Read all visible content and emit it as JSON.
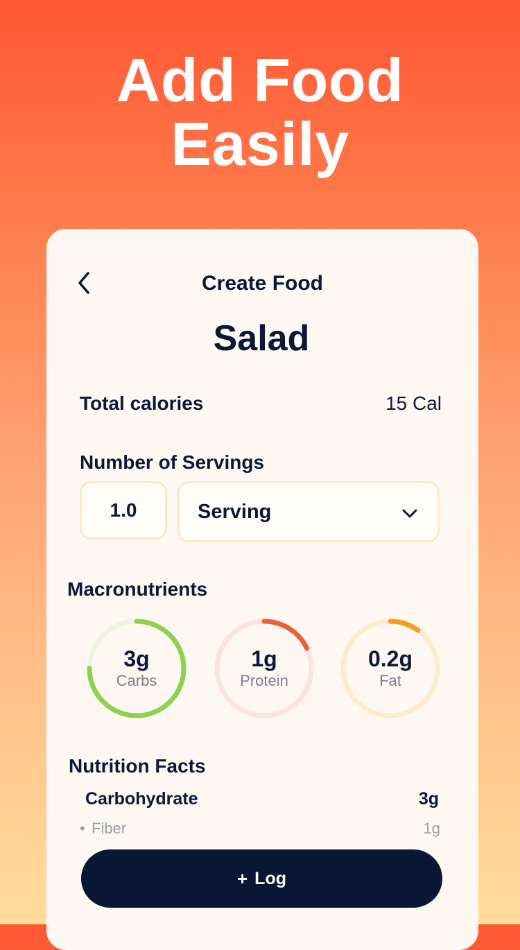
{
  "hero": {
    "line1": "Add Food",
    "line2": "Easily"
  },
  "header": {
    "back_icon": "chevron-left-icon",
    "title": "Create Food"
  },
  "food": {
    "name": "Salad"
  },
  "calories": {
    "label": "Total calories",
    "value": "15 Cal"
  },
  "servings": {
    "label": "Number of Servings",
    "quantity": "1.0",
    "unit": "Serving",
    "unit_icon": "chevron-down-icon"
  },
  "macros": {
    "title": "Macronutrients",
    "items": [
      {
        "value": "3g",
        "label": "Carbs",
        "fraction": 0.75,
        "color": "#8fd14f",
        "track": "#edf4e1"
      },
      {
        "value": "1g",
        "label": "Protein",
        "fraction": 0.18,
        "color": "#f25c3b",
        "track": "#fce3dd"
      },
      {
        "value": "0.2g",
        "label": "Fat",
        "fraction": 0.1,
        "color": "#f79a1f",
        "track": "#fdebd0"
      }
    ]
  },
  "nutrition": {
    "title": "Nutrition Facts",
    "main_label": "Carbohydrate",
    "main_value": "3g",
    "sub_bullet": "•",
    "sub_label": "Fiber",
    "sub_value": "1g"
  },
  "log_button": {
    "icon": "+",
    "label": "Log"
  },
  "colors": {
    "accent_dark": "#0a1734",
    "card_bg": "#fdf9f2"
  }
}
